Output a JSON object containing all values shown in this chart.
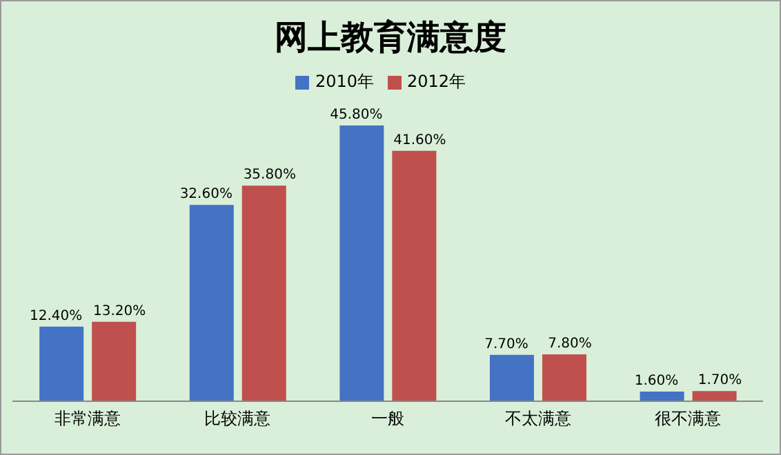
{
  "chart_data": {
    "type": "bar",
    "title": "网上教育满意度",
    "categories": [
      "非常满意",
      "比较满意",
      "一般",
      "不太满意",
      "很不满意"
    ],
    "series": [
      {
        "name": "2010年",
        "color": "#4472c4",
        "values": [
          12.4,
          32.6,
          45.8,
          7.7,
          1.6
        ],
        "value_labels": [
          "12.40%",
          "32.60%",
          "45.80%",
          "7.70%",
          "1.60%"
        ]
      },
      {
        "name": "2012年",
        "color": "#c0504d",
        "values": [
          13.2,
          35.8,
          41.6,
          7.8,
          1.7
        ],
        "value_labels": [
          "13.20%",
          "35.80%",
          "41.60%",
          "7.80%",
          "1.70%"
        ]
      }
    ],
    "legend": "top",
    "grid": false
  }
}
